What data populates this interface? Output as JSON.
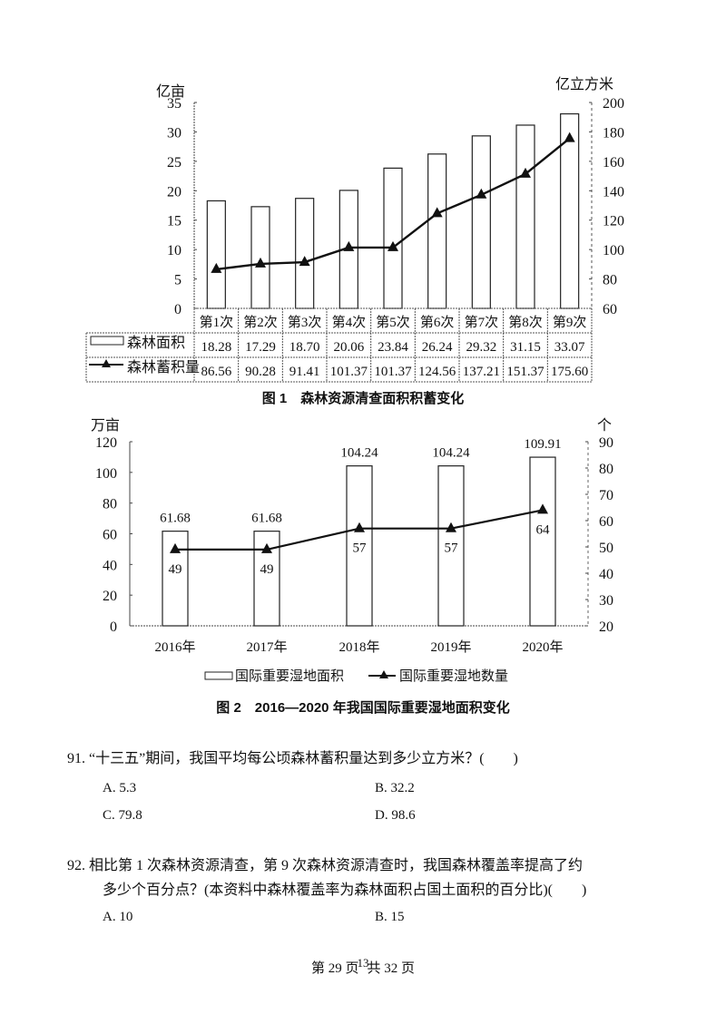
{
  "chart_data": [
    {
      "type": "bar+line",
      "title": "图 1　森林资源清查面积积蓄变化",
      "categories": [
        "第1次",
        "第2次",
        "第3次",
        "第4次",
        "第5次",
        "第6次",
        "第7次",
        "第8次",
        "第9次"
      ],
      "series": [
        {
          "name": "森林面积",
          "type": "bar",
          "axis": "left",
          "values": [
            18.28,
            17.29,
            18.7,
            20.06,
            23.84,
            26.24,
            29.32,
            31.15,
            33.07
          ]
        },
        {
          "name": "森林蓄积量",
          "type": "line",
          "axis": "right",
          "values": [
            86.56,
            90.28,
            91.41,
            101.37,
            101.37,
            124.56,
            137.21,
            151.37,
            175.6
          ]
        }
      ],
      "ylabel_left": "亿亩",
      "ylabel_right": "亿立方米",
      "ylim_left": [
        0,
        35
      ],
      "yticks_left": [
        "0",
        "5",
        "10",
        "15",
        "20",
        "25",
        "30",
        "35"
      ],
      "ylim_right": [
        60,
        200
      ],
      "yticks_right": [
        "60",
        "80",
        "100",
        "120",
        "140",
        "160",
        "180",
        "200"
      ],
      "data_table": true,
      "grid": false
    },
    {
      "type": "bar+line",
      "title": "图 2　2016—2020 年我国国际重要湿地面积变化",
      "categories": [
        "2016年",
        "2017年",
        "2018年",
        "2019年",
        "2020年"
      ],
      "series": [
        {
          "name": "国际重要湿地面积",
          "type": "bar",
          "axis": "left",
          "values": [
            61.68,
            61.68,
            104.24,
            104.24,
            109.91
          ]
        },
        {
          "name": "国际重要湿地数量",
          "type": "line",
          "axis": "right",
          "values": [
            49,
            49,
            57,
            57,
            64
          ]
        }
      ],
      "ylabel_left": "万亩",
      "ylabel_right": "个",
      "ylim_left": [
        0,
        120
      ],
      "yticks_left": [
        "0",
        "20",
        "40",
        "60",
        "80",
        "100",
        "120"
      ],
      "ylim_right": [
        20,
        90
      ],
      "yticks_right": [
        "20",
        "30",
        "40",
        "50",
        "60",
        "70",
        "80",
        "90"
      ],
      "legend_position": "bottom",
      "grid": false
    }
  ],
  "fig1": {
    "unit_left": "亿亩",
    "unit_right": "亿立方米",
    "row1_label": "森林面积",
    "row2_label": "森林蓄积量",
    "caption": "图 1　森林资源清查面积积蓄变化"
  },
  "fig2": {
    "unit_left": "万亩",
    "unit_right": "个",
    "legend_bar": "国际重要湿地面积",
    "legend_line": "国际重要湿地数量",
    "caption": "图 2　2016—2020 年我国国际重要湿地面积变化"
  },
  "questions": [
    {
      "number": "91.",
      "text": "“十三五”期间，我国平均每公顷森林蓄积量达到多少立方米？(　　)",
      "options": [
        {
          "label": "A. 5.3"
        },
        {
          "label": "B. 32.2"
        },
        {
          "label": "C. 79.8"
        },
        {
          "label": "D. 98.6"
        }
      ]
    },
    {
      "number": "92.",
      "text_line1": "相比第 1 次森林资源清查，第 9 次森林资源清查时，我国森林覆盖率提高了约",
      "text_line2": "多少个百分点？(本资料中森林覆盖率为森林面积占国土面积的百分比)(　　)",
      "options": [
        {
          "label": "A. 10"
        },
        {
          "label": "B. 15"
        }
      ]
    }
  ],
  "footer": {
    "page": "第 29 页",
    "overlay": "13",
    "total": "共 32 页"
  }
}
